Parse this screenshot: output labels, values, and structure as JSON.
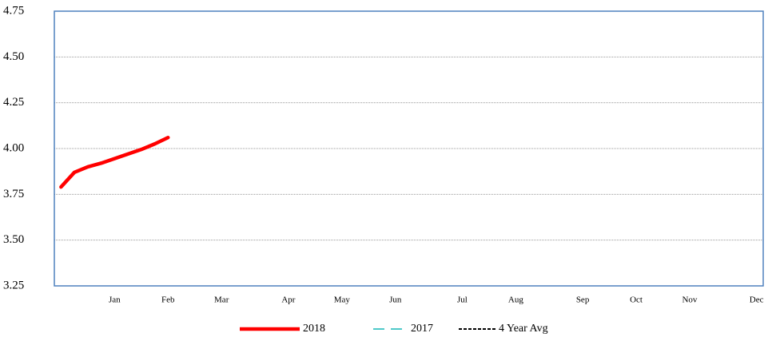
{
  "chart_data": {
    "type": "line",
    "x": [
      0.5,
      1.5,
      2.5,
      3.5,
      4.5,
      5.5,
      6.5,
      7.5,
      8.5
    ],
    "series": [
      {
        "name": "2018",
        "color": "#ff0000",
        "dash": "solid",
        "values": [
          3.79,
          3.87,
          3.9,
          3.92,
          3.945,
          3.97,
          3.995,
          4.025,
          4.06
        ]
      },
      {
        "name": "2017",
        "color": "#4fc9c9",
        "dash": "dashed",
        "values": [
          null,
          null,
          null,
          null,
          null,
          null,
          null,
          null,
          null
        ]
      },
      {
        "name": "4 Year Avg",
        "color": "#000000",
        "dash": "dotted",
        "values": [
          null,
          null,
          null,
          null,
          null,
          null,
          null,
          null,
          null
        ]
      }
    ],
    "xlim": [
      0,
      53
    ],
    "xticks": [
      {
        "value": 4.5,
        "label": "Jan"
      },
      {
        "value": 8.5,
        "label": "Feb"
      },
      {
        "value": 12.5,
        "label": "Mar"
      },
      {
        "value": 17.5,
        "label": "Apr"
      },
      {
        "value": 21.5,
        "label": "May"
      },
      {
        "value": 25.5,
        "label": "Jun"
      },
      {
        "value": 30.5,
        "label": "Jul"
      },
      {
        "value": 34.5,
        "label": "Aug"
      },
      {
        "value": 39.5,
        "label": "Sep"
      },
      {
        "value": 43.5,
        "label": "Oct"
      },
      {
        "value": 47.5,
        "label": "Nov"
      },
      {
        "value": 52.5,
        "label": "Dec"
      }
    ],
    "ylim": [
      3.25,
      4.75
    ],
    "yticks": [
      3.25,
      {
        "value": 3.5,
        "label": "3.50"
      },
      3.75,
      {
        "value": 4.0,
        "label": "4.00"
      },
      4.25,
      {
        "value": 4.5,
        "label": "4.50"
      },
      4.75
    ],
    "grid": true
  }
}
